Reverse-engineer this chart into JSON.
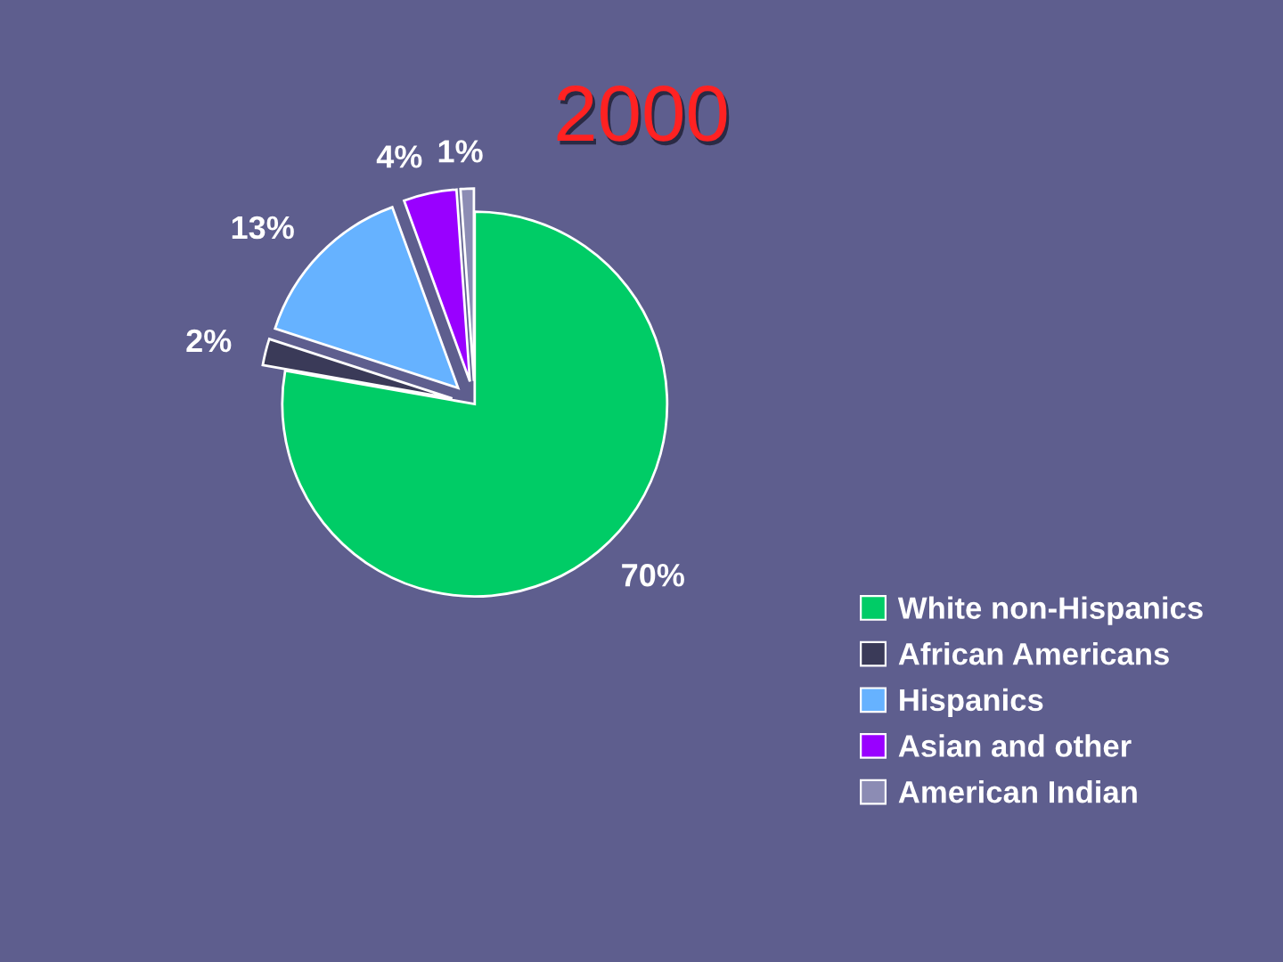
{
  "chart_data": {
    "type": "pie",
    "title": "2000",
    "categories": [
      "White non-Hispanics",
      "African Americans",
      "Hispanics",
      "Asian and other",
      "American Indian"
    ],
    "values": [
      70,
      2,
      13,
      4,
      1
    ],
    "value_labels": [
      "70%",
      "2%",
      "13%",
      "4%",
      "1%"
    ],
    "colors": [
      "#00cc66",
      "#3a3a58",
      "#66b2ff",
      "#9900ff",
      "#8c8cb4"
    ],
    "legend": "bottom right"
  }
}
